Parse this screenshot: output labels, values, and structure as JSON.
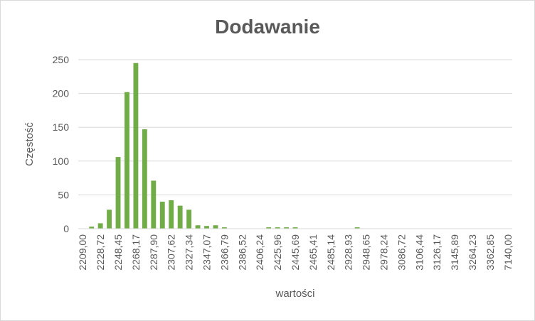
{
  "chart_data": {
    "type": "bar",
    "title": "Dodawanie",
    "xlabel": "wartości",
    "ylabel": "Częstość",
    "ylim": [
      0,
      250
    ],
    "yticks": [
      "0",
      "50",
      "100",
      "150",
      "200",
      "250"
    ],
    "grid": true,
    "color": "#70ad47",
    "x_tick_labels": [
      "2209,00",
      "2228,72",
      "2248,45",
      "2268,17",
      "2287,90",
      "2307,62",
      "2327,34",
      "2347,07",
      "2366,79",
      "2386,52",
      "2406,24",
      "2425,96",
      "2445,69",
      "2465,41",
      "2485,14",
      "2928,93",
      "2948,65",
      "2978,24",
      "3086,72",
      "3106,44",
      "3126,17",
      "3145,89",
      "3264,23",
      "3362,85",
      "7140,00"
    ],
    "values": [
      0,
      3,
      8,
      28,
      106,
      202,
      245,
      147,
      71,
      40,
      42,
      34,
      28,
      5,
      4,
      5,
      2,
      0,
      0,
      0,
      0,
      2,
      2,
      2,
      2,
      0,
      0,
      0,
      0,
      0,
      0,
      2,
      0,
      0,
      0,
      0,
      0,
      0,
      0,
      0,
      0,
      0,
      0,
      0,
      0,
      0,
      0,
      0,
      0
    ]
  }
}
